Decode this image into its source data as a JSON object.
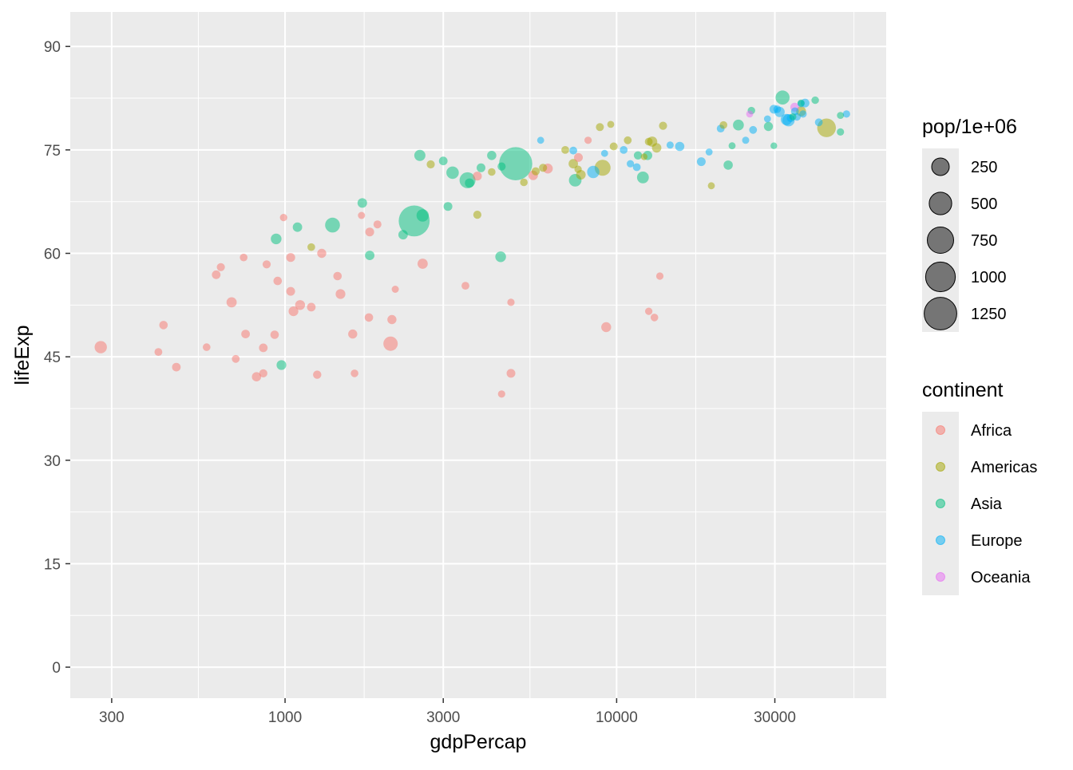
{
  "chart_data": {
    "type": "scatter",
    "xlabel": "gdpPercap",
    "ylabel": "lifeExp",
    "x_scale": "log10",
    "xlim": [
      225,
      65000
    ],
    "ylim": [
      -4.5,
      95
    ],
    "x_ticks": [
      300,
      1000,
      3000,
      10000,
      30000
    ],
    "x_tick_labels": [
      "300",
      "1000",
      "3000",
      "10000",
      "30000"
    ],
    "y_ticks": [
      0,
      15,
      30,
      45,
      60,
      75,
      90
    ],
    "y_tick_labels": [
      "0",
      "15",
      "30",
      "45",
      "60",
      "75",
      "90"
    ],
    "grid": true,
    "point_opacity": 0.5,
    "size_legend": {
      "title": "pop/1e+06",
      "breaks": [
        250,
        500,
        750,
        1000,
        1250
      ],
      "labels": [
        "250",
        "500",
        "750",
        "1000",
        "1250"
      ]
    },
    "color_legend": {
      "title": "continent",
      "entries": [
        {
          "label": "Africa",
          "color": "#F8766D"
        },
        {
          "label": "Americas",
          "color": "#A3A500"
        },
        {
          "label": "Asia",
          "color": "#00BF7D"
        },
        {
          "label": "Europe",
          "color": "#00B0F6"
        },
        {
          "label": "Oceania",
          "color": "#E76BF3"
        }
      ]
    },
    "legend_position": "right",
    "series": [
      {
        "name": "Africa",
        "color": "#F8766D",
        "points": [
          [
            278,
            46.4,
            80
          ],
          [
            415,
            45.7,
            10
          ],
          [
            430,
            49.6,
            15
          ],
          [
            470,
            43.5,
            18
          ],
          [
            580,
            46.4,
            9
          ],
          [
            620,
            56.9,
            17
          ],
          [
            640,
            58.0,
            13
          ],
          [
            690,
            52.9,
            40
          ],
          [
            710,
            44.7,
            10
          ],
          [
            750,
            59.4,
            8
          ],
          [
            760,
            48.3,
            18
          ],
          [
            820,
            42.1,
            25
          ],
          [
            860,
            42.6,
            12
          ],
          [
            860,
            46.3,
            18
          ],
          [
            880,
            58.4,
            12
          ],
          [
            930,
            48.2,
            15
          ],
          [
            950,
            56.0,
            16
          ],
          [
            990,
            65.2,
            6
          ],
          [
            1040,
            54.5,
            19
          ],
          [
            1040,
            59.4,
            21
          ],
          [
            1060,
            51.6,
            31
          ],
          [
            1110,
            52.5,
            33
          ],
          [
            1200,
            52.2,
            18
          ],
          [
            1250,
            42.4,
            14
          ],
          [
            1290,
            60.0,
            23
          ],
          [
            1440,
            56.7,
            15
          ],
          [
            1470,
            54.1,
            32
          ],
          [
            1600,
            48.3,
            22
          ],
          [
            1620,
            42.6,
            8
          ],
          [
            1700,
            65.5,
            5
          ],
          [
            1790,
            50.7,
            16
          ],
          [
            1800,
            63.1,
            19
          ],
          [
            1900,
            64.2,
            11
          ],
          [
            2080,
            46.9,
            135
          ],
          [
            2100,
            50.4,
            22
          ],
          [
            2150,
            54.8,
            5
          ],
          [
            2600,
            58.5,
            38
          ],
          [
            3500,
            55.3,
            10
          ],
          [
            3800,
            71.2,
            21
          ],
          [
            4500,
            39.6,
            6
          ],
          [
            4800,
            42.6,
            20
          ],
          [
            4800,
            52.9,
            6
          ],
          [
            5600,
            71.3,
            30
          ],
          [
            6200,
            72.3,
            35
          ],
          [
            7670,
            73.9,
            20
          ],
          [
            8200,
            76.4,
            6
          ],
          [
            9300,
            49.3,
            35
          ],
          [
            12500,
            51.6,
            6
          ],
          [
            13000,
            50.7,
            8
          ],
          [
            13500,
            56.7,
            6
          ]
        ]
      },
      {
        "name": "Americas",
        "color": "#A3A500",
        "points": [
          [
            1200,
            60.9,
            9
          ],
          [
            2750,
            72.9,
            12
          ],
          [
            3800,
            65.6,
            12
          ],
          [
            4200,
            71.8,
            9
          ],
          [
            5250,
            70.3,
            8
          ],
          [
            5700,
            71.9,
            13
          ],
          [
            6000,
            72.4,
            13
          ],
          [
            7000,
            75.0,
            10
          ],
          [
            7400,
            73.0,
            28
          ],
          [
            7650,
            72.2,
            6
          ],
          [
            7800,
            71.4,
            29
          ],
          [
            8900,
            78.3,
            11
          ],
          [
            9070,
            72.4,
            190
          ],
          [
            9600,
            78.7,
            4
          ],
          [
            9800,
            75.5,
            11
          ],
          [
            10800,
            76.4,
            10
          ],
          [
            12100,
            74.0,
            3
          ],
          [
            12800,
            76.2,
            40
          ],
          [
            12500,
            76.2,
            10
          ],
          [
            13200,
            75.3,
            28
          ],
          [
            13800,
            78.5,
            12
          ],
          [
            19300,
            69.8,
            4
          ],
          [
            21000,
            78.6,
            9
          ],
          [
            36000,
            80.6,
            33
          ],
          [
            42951,
            78.2,
            301
          ]
        ]
      },
      {
        "name": "Asia",
        "color": "#00BF7D",
        "points": [
          [
            975,
            43.8,
            32
          ],
          [
            940,
            62.1,
            47
          ],
          [
            1090,
            63.8,
            28
          ],
          [
            1390,
            64.1,
            150
          ],
          [
            1710,
            67.3,
            30
          ],
          [
            1800,
            59.7,
            27
          ],
          [
            2270,
            62.7,
            28
          ],
          [
            2452,
            64.7,
            1111
          ],
          [
            2600,
            65.5,
            80
          ],
          [
            2550,
            74.2,
            55
          ],
          [
            3100,
            66.8,
            19
          ],
          [
            3000,
            73.4,
            18
          ],
          [
            3200,
            71.7,
            84
          ],
          [
            3550,
            70.6,
            190
          ],
          [
            3600,
            70.2,
            24
          ],
          [
            3900,
            72.4,
            20
          ],
          [
            4200,
            74.2,
            26
          ],
          [
            4470,
            59.5,
            48
          ],
          [
            4500,
            72.6,
            12
          ],
          [
            4959,
            73.0,
            1319
          ],
          [
            7500,
            70.6,
            86
          ],
          [
            11600,
            74.2,
            14
          ],
          [
            12000,
            71.0,
            70
          ],
          [
            12400,
            74.2,
            24
          ],
          [
            21700,
            72.8,
            25
          ],
          [
            22300,
            75.6,
            4
          ],
          [
            23300,
            78.6,
            49
          ],
          [
            25500,
            80.7,
            7
          ],
          [
            28700,
            78.4,
            23
          ],
          [
            29800,
            75.6,
            3
          ],
          [
            31656,
            82.6,
            127
          ],
          [
            34000,
            79.8,
            4
          ],
          [
            36000,
            81.8,
            4
          ],
          [
            39700,
            82.2,
            7
          ],
          [
            47300,
            80.0,
            4
          ],
          [
            47300,
            77.6,
            6
          ]
        ]
      },
      {
        "name": "Europe",
        "color": "#00B0F6",
        "points": [
          [
            5900,
            76.4,
            4
          ],
          [
            7400,
            74.9,
            10
          ],
          [
            8500,
            71.8,
            80
          ],
          [
            9200,
            74.5,
            4
          ],
          [
            10500,
            75.0,
            10
          ],
          [
            11000,
            73.0,
            6
          ],
          [
            11500,
            72.5,
            10
          ],
          [
            14500,
            75.7,
            5
          ],
          [
            15500,
            75.5,
            25
          ],
          [
            18000,
            73.3,
            20
          ],
          [
            19000,
            74.7,
            4
          ],
          [
            20600,
            78.1,
            10
          ],
          [
            24500,
            76.4,
            5
          ],
          [
            25800,
            77.9,
            10
          ],
          [
            28500,
            79.5,
            4
          ],
          [
            29800,
            80.9,
            20
          ],
          [
            30500,
            80.9,
            8
          ],
          [
            31000,
            80.5,
            40
          ],
          [
            32500,
            79.4,
            60
          ],
          [
            33000,
            79.3,
            82
          ],
          [
            33500,
            79.6,
            10
          ],
          [
            34500,
            80.6,
            10
          ],
          [
            35000,
            79.8,
            8
          ],
          [
            36000,
            81.7,
            5
          ],
          [
            36500,
            80.2,
            6
          ],
          [
            37000,
            81.8,
            20
          ],
          [
            40700,
            79.0,
            10
          ],
          [
            49357,
            80.2,
            6
          ]
        ]
      },
      {
        "name": "Oceania",
        "color": "#E76BF3",
        "points": [
          [
            25185,
            80.2,
            4
          ],
          [
            34435,
            81.2,
            20
          ]
        ]
      }
    ]
  }
}
